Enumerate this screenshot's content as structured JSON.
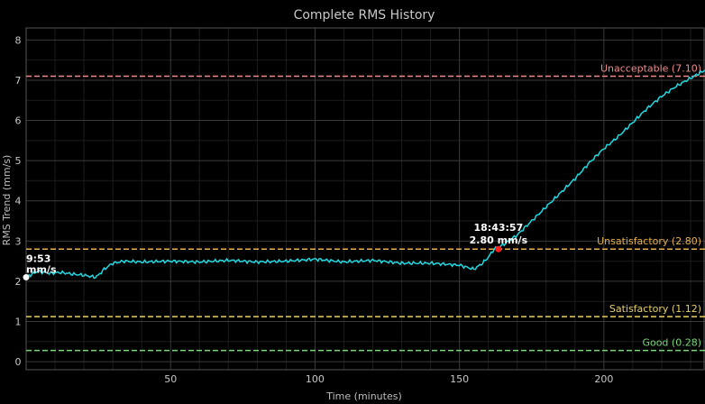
{
  "chart_data": {
    "type": "line",
    "title": "Complete RMS History",
    "xlabel": "Time (minutes)",
    "ylabel": "RMS Trend (mm/s)",
    "xlim": [
      0,
      235
    ],
    "ylim": [
      -0.2,
      8.3
    ],
    "x_ticks": [
      50,
      100,
      150,
      200
    ],
    "y_ticks": [
      0,
      1,
      2,
      3,
      4,
      5,
      6,
      7,
      8
    ],
    "grid": true,
    "series": [
      {
        "color": "#22d8e0",
        "x": [
          0,
          4,
          8,
          12,
          16,
          20,
          24,
          25,
          27,
          30,
          34,
          40,
          50,
          60,
          70,
          80,
          90,
          100,
          110,
          120,
          130,
          140,
          150,
          155,
          158,
          160,
          162,
          165,
          170,
          175,
          180,
          185,
          190,
          195,
          200,
          205,
          210,
          215,
          220,
          225,
          230,
          235
        ],
        "y": [
          2.1,
          2.25,
          2.2,
          2.22,
          2.18,
          2.15,
          2.1,
          2.15,
          2.3,
          2.45,
          2.5,
          2.48,
          2.5,
          2.48,
          2.52,
          2.48,
          2.5,
          2.55,
          2.48,
          2.52,
          2.45,
          2.45,
          2.4,
          2.3,
          2.45,
          2.6,
          2.8,
          2.9,
          3.15,
          3.5,
          3.85,
          4.2,
          4.55,
          4.95,
          5.3,
          5.6,
          5.95,
          6.3,
          6.6,
          6.85,
          7.05,
          7.25
        ]
      }
    ],
    "thresholds": [
      {
        "label": "Unacceptable (7.10)",
        "value": 7.1,
        "color": "#f08a8a"
      },
      {
        "label": "Unsatisfactory (2.80)",
        "value": 2.8,
        "color": "#e8b04a"
      },
      {
        "label": "Satisfactory (1.12)",
        "value": 1.12,
        "color": "#e8d060"
      },
      {
        "label": "Good (0.28)",
        "value": 0.28,
        "color": "#78d878"
      }
    ],
    "markers": [
      {
        "x": 163.5,
        "y": 2.8,
        "color": "#ff2020",
        "time_label": "18:43:57",
        "value_label": "2.80 mm/s"
      },
      {
        "x": 0,
        "y": 2.1,
        "color": "#ffffff",
        "time_label": "9:53",
        "value_label": "mm/s"
      }
    ]
  }
}
